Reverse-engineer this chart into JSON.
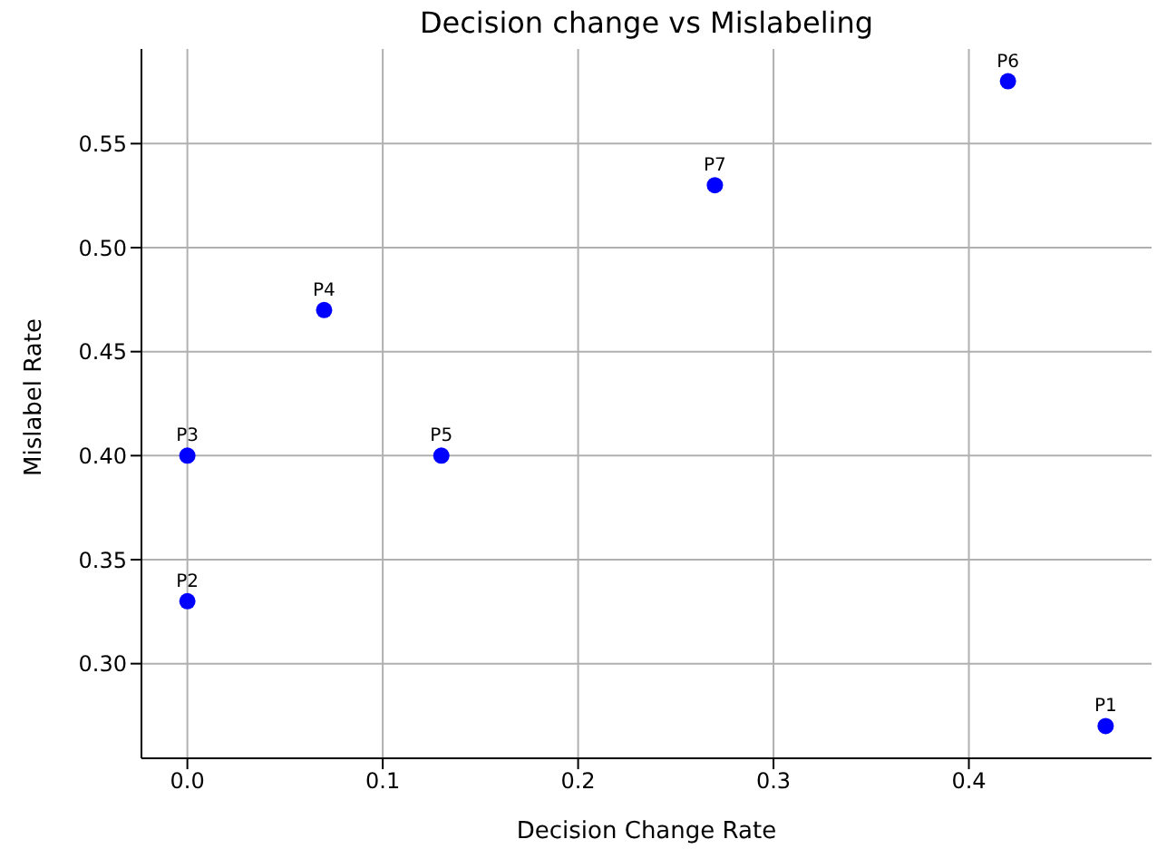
{
  "chart_data": {
    "type": "scatter",
    "title": "Decision change vs Mislabeling",
    "xlabel": "Decision Change Rate",
    "ylabel": "Mislabel Rate",
    "x": [
      0.47,
      0,
      0,
      0.07,
      0.13,
      0.42,
      0.27
    ],
    "series": [
      {
        "color": "#0000ff",
        "values": [
          0.27,
          0.33,
          0.4,
          0.47,
          0.4,
          0.58,
          0.53
        ]
      }
    ],
    "annotations": [
      {
        "text": "P1",
        "x": 0.47,
        "y": 0.27
      },
      {
        "text": "P2",
        "x": 0,
        "y": 0.33
      },
      {
        "text": "P3",
        "x": 0,
        "y": 0.4
      },
      {
        "text": "P4",
        "x": 0.07,
        "y": 0.47
      },
      {
        "text": "P5",
        "x": 0.13,
        "y": 0.4
      },
      {
        "text": "P6",
        "x": 0.42,
        "y": 0.58
      },
      {
        "text": "P7",
        "x": 0.27,
        "y": 0.53
      }
    ],
    "xlim": [
      -0.0235,
      0.4935
    ],
    "ylim": [
      0.2545,
      0.5955
    ],
    "xticks": [
      {
        "value": 0,
        "label": "0.0"
      },
      {
        "value": 0.1,
        "label": "0.1"
      },
      {
        "value": 0.2,
        "label": "0.2"
      },
      {
        "value": 0.3,
        "label": "0.3"
      },
      {
        "value": 0.4,
        "label": "0.4"
      }
    ],
    "yticks": [
      {
        "value": 0.3,
        "label": "0.30"
      },
      {
        "value": 0.35,
        "label": "0.35"
      },
      {
        "value": 0.4,
        "label": "0.40"
      },
      {
        "value": 0.45,
        "label": "0.45"
      },
      {
        "value": 0.5,
        "label": "0.50"
      },
      {
        "value": 0.55,
        "label": "0.55"
      }
    ],
    "grid": true,
    "marker": "circle"
  }
}
